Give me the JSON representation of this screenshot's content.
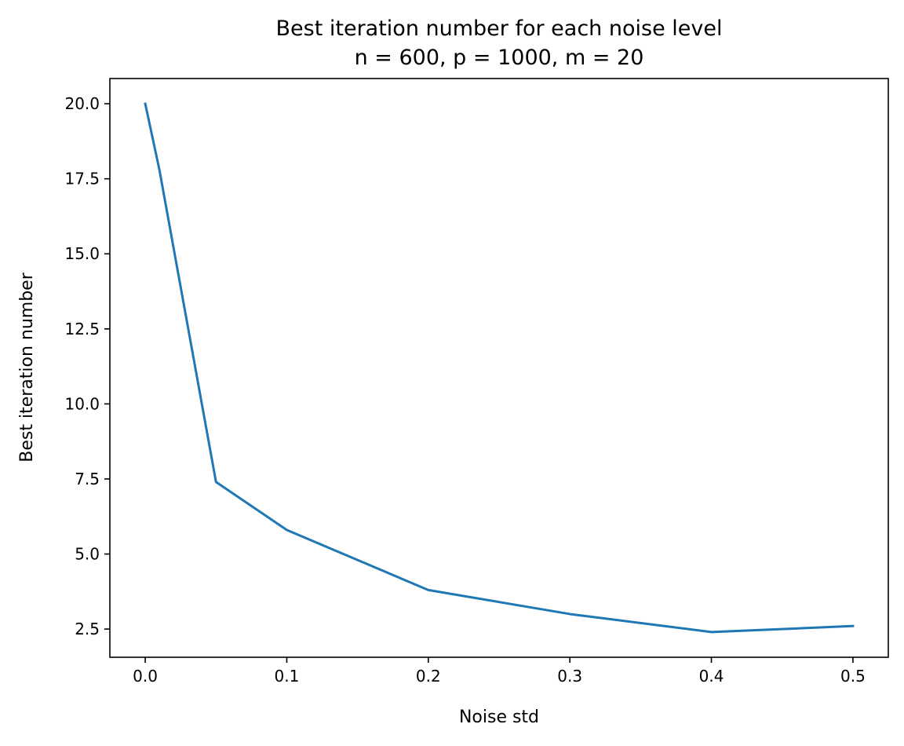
{
  "chart_data": {
    "type": "line",
    "title": "Best iteration number for each noise level",
    "subtitle": "n = 600, p = 1000, m = 20",
    "xlabel": "Noise std",
    "ylabel": "Best iteration number",
    "xlim": [
      -0.025,
      0.525
    ],
    "ylim": [
      1.56,
      20.84
    ],
    "x_ticks": [
      {
        "value": 0.0,
        "label": "0.0"
      },
      {
        "value": 0.1,
        "label": "0.1"
      },
      {
        "value": 0.2,
        "label": "0.2"
      },
      {
        "value": 0.3,
        "label": "0.3"
      },
      {
        "value": 0.4,
        "label": "0.4"
      },
      {
        "value": 0.5,
        "label": "0.5"
      }
    ],
    "y_ticks": [
      {
        "value": 2.5,
        "label": "2.5"
      },
      {
        "value": 5.0,
        "label": "5.0"
      },
      {
        "value": 7.5,
        "label": "7.5"
      },
      {
        "value": 10.0,
        "label": "10.0"
      },
      {
        "value": 12.5,
        "label": "12.5"
      },
      {
        "value": 15.0,
        "label": "15.0"
      },
      {
        "value": 17.5,
        "label": "17.5"
      },
      {
        "value": 20.0,
        "label": "20.0"
      }
    ],
    "grid": false,
    "legend": "none",
    "series": [
      {
        "color": "#1f77b4",
        "x": [
          0.0,
          0.01,
          0.05,
          0.1,
          0.2,
          0.3,
          0.4,
          0.5
        ],
        "y": [
          20.0,
          17.8,
          7.4,
          5.8,
          3.8,
          3.0,
          2.4,
          2.6
        ]
      }
    ]
  }
}
